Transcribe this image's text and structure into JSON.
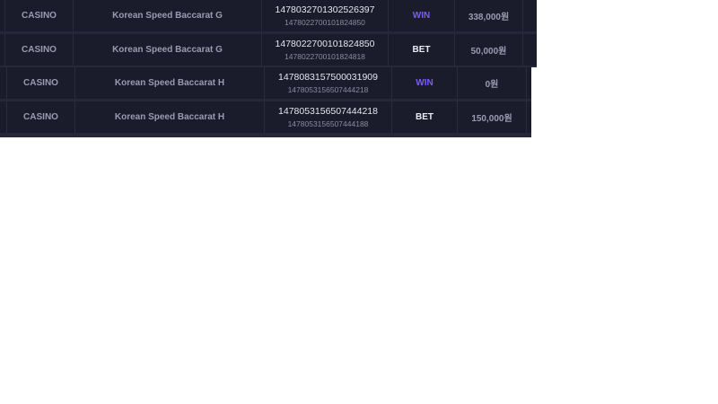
{
  "colors": {
    "win": "#7b5cf5",
    "bet": "#ececf4",
    "row_bg": "#1b1c2b",
    "gap_bg": "#262739"
  },
  "rows": [
    {
      "category": "CASINO",
      "game": "Korean Speed Baccarat G",
      "id": "1478032701302526397",
      "ref_id": "1478022700101824850",
      "type": "WIN",
      "amount": "338,000원"
    },
    {
      "category": "CASINO",
      "game": "Korean Speed Baccarat G",
      "id": "1478022700101824850",
      "ref_id": "1478022700101824818",
      "type": "BET",
      "amount": "50,000원"
    },
    {
      "category": "CASINO",
      "game": "Korean Speed Baccarat H",
      "id": "1478083157500031909",
      "ref_id": "1478053156507444218",
      "type": "WIN",
      "amount": "0원"
    },
    {
      "category": "CASINO",
      "game": "Korean Speed Baccarat H",
      "id": "1478053156507444218",
      "ref_id": "1478053156507444188",
      "type": "BET",
      "amount": "150,000원"
    }
  ]
}
